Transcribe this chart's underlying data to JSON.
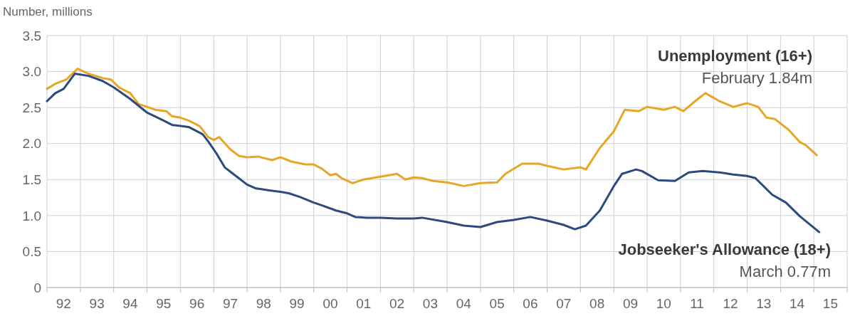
{
  "chart_data": {
    "type": "line",
    "ylabel": "Number, millions",
    "grid": true,
    "line_style": "solid",
    "marker": "none",
    "xlim": [
      "1992-01",
      "2016-01"
    ],
    "ylim": [
      0,
      3.5
    ],
    "yticks": [
      0,
      0.5,
      {
        "value": 1,
        "label": "1.0"
      },
      1.5,
      {
        "value": 2,
        "label": "2.0"
      },
      2.5,
      {
        "value": 3,
        "label": "3.0"
      },
      3.5
    ],
    "xticks": [
      {
        "value": "1992-01",
        "label": null
      },
      {
        "value": "1993-01",
        "label": null
      },
      {
        "value": "1994-01",
        "label": null
      },
      {
        "value": "1995-01",
        "label": null
      },
      {
        "value": "1996-01",
        "label": null
      },
      {
        "value": "1997-01",
        "label": null
      },
      {
        "value": "1998-01",
        "label": null
      },
      {
        "value": "1999-01",
        "label": null
      },
      {
        "value": "2000-01",
        "label": null
      },
      {
        "value": "2001-01",
        "label": null
      },
      {
        "value": "2002-01",
        "label": null
      },
      {
        "value": "2003-01",
        "label": null
      },
      {
        "value": "2004-01",
        "label": null
      },
      {
        "value": "2005-01",
        "label": null
      },
      {
        "value": "2006-01",
        "label": null
      },
      {
        "value": "2007-01",
        "label": null
      },
      {
        "value": "2008-01",
        "label": null
      },
      {
        "value": "2009-01",
        "label": null
      },
      {
        "value": "2010-01",
        "label": null
      },
      {
        "value": "2011-01",
        "label": null
      },
      {
        "value": "2012-01",
        "label": null
      },
      {
        "value": "2013-01",
        "label": null
      },
      {
        "value": "2014-01",
        "label": null
      },
      {
        "value": "2015-01",
        "label": null
      },
      {
        "value": "2016-01",
        "label": null
      },
      {
        "value": "1992-07",
        "label": "92"
      },
      {
        "value": "1993-07",
        "label": "93"
      },
      {
        "value": "1994-07",
        "label": "94"
      },
      {
        "value": "1995-07",
        "label": "95"
      },
      {
        "value": "1996-07",
        "label": "96"
      },
      {
        "value": "1997-07",
        "label": "97"
      },
      {
        "value": "1998-07",
        "label": "98"
      },
      {
        "value": "1999-07",
        "label": "99"
      },
      {
        "value": "2000-07",
        "label": "00"
      },
      {
        "value": "2001-07",
        "label": "01"
      },
      {
        "value": "2002-07",
        "label": "02"
      },
      {
        "value": "2003-07",
        "label": "03"
      },
      {
        "value": "2004-07",
        "label": "04"
      },
      {
        "value": "2005-07",
        "label": "05"
      },
      {
        "value": "2006-07",
        "label": "06"
      },
      {
        "value": "2007-07",
        "label": "07"
      },
      {
        "value": "2008-07",
        "label": "08"
      },
      {
        "value": "2009-07",
        "label": "09"
      },
      {
        "value": "2010-07",
        "label": "10"
      },
      {
        "value": "2011-07",
        "label": "11"
      },
      {
        "value": "2012-07",
        "label": "12"
      },
      {
        "value": "2013-07",
        "label": "13"
      },
      {
        "value": "2014-07",
        "label": "14"
      },
      {
        "value": "2015-07",
        "label": "15"
      }
    ],
    "series": [
      {
        "name": "Unemployment (16+)",
        "color": "#e8a628",
        "x": [
          "1992-01",
          "1992-04",
          "1992-08",
          "1992-12",
          "1993-04",
          "1993-09",
          "1993-12",
          "1994-03",
          "1994-07",
          "1994-10",
          "1995-01",
          "1995-04",
          "1995-08",
          "1995-10",
          "1996-01",
          "1996-04",
          "1996-08",
          "1996-11",
          "1997-01",
          "1997-03",
          "1997-07",
          "1997-10",
          "1998-01",
          "1998-05",
          "1998-10",
          "1999-01",
          "1999-05",
          "1999-10",
          "2000-01",
          "2000-04",
          "2000-07",
          "2000-09",
          "2000-11",
          "2001-03",
          "2001-07",
          "2002-01",
          "2002-07",
          "2002-10",
          "2003-01",
          "2003-04",
          "2003-08",
          "2004-01",
          "2004-07",
          "2005-01",
          "2005-07",
          "2005-10",
          "2006-04",
          "2006-10",
          "2007-01",
          "2007-07",
          "2008-01",
          "2008-03",
          "2008-08",
          "2009-01",
          "2009-05",
          "2009-10",
          "2010-01",
          "2010-07",
          "2010-11",
          "2011-02",
          "2011-07",
          "2011-10",
          "2012-03",
          "2012-08",
          "2013-01",
          "2013-05",
          "2013-08",
          "2013-11",
          "2014-04",
          "2014-08",
          "2014-10",
          "2015-02"
        ],
        "values": [
          2.76,
          2.83,
          2.89,
          3.04,
          2.97,
          2.91,
          2.89,
          2.78,
          2.7,
          2.55,
          2.51,
          2.47,
          2.45,
          2.38,
          2.36,
          2.32,
          2.24,
          2.09,
          2.05,
          2.09,
          1.92,
          1.83,
          1.81,
          1.82,
          1.77,
          1.81,
          1.75,
          1.71,
          1.71,
          1.65,
          1.56,
          1.58,
          1.52,
          1.45,
          1.5,
          1.54,
          1.58,
          1.5,
          1.53,
          1.52,
          1.48,
          1.46,
          1.41,
          1.45,
          1.46,
          1.58,
          1.72,
          1.72,
          1.69,
          1.64,
          1.67,
          1.64,
          1.94,
          2.17,
          2.47,
          2.45,
          2.51,
          2.47,
          2.51,
          2.45,
          2.61,
          2.7,
          2.59,
          2.51,
          2.56,
          2.51,
          2.36,
          2.34,
          2.19,
          2.02,
          1.98,
          1.84
        ]
      },
      {
        "name": "Jobseeker's Allowance (18+)",
        "color": "#2c4a7e",
        "x": [
          "1992-01",
          "1992-04",
          "1992-07",
          "1992-11",
          "1993-04",
          "1993-09",
          "1994-01",
          "1994-07",
          "1995-01",
          "1995-07",
          "1995-10",
          "1996-04",
          "1996-09",
          "1996-11",
          "1997-02",
          "1997-05",
          "1997-08",
          "1998-01",
          "1998-04",
          "1998-09",
          "1999-01",
          "1999-04",
          "1999-08",
          "2000-01",
          "2000-04",
          "2000-09",
          "2001-01",
          "2001-04",
          "2001-08",
          "2002-01",
          "2002-07",
          "2003-01",
          "2003-04",
          "2004-01",
          "2004-07",
          "2005-01",
          "2005-07",
          "2006-01",
          "2006-07",
          "2007-01",
          "2007-07",
          "2007-11",
          "2008-03",
          "2008-08",
          "2009-01",
          "2009-04",
          "2009-09",
          "2009-11",
          "2010-05",
          "2010-11",
          "2011-04",
          "2011-09",
          "2012-03",
          "2012-08",
          "2013-01",
          "2013-04",
          "2013-10",
          "2014-03",
          "2014-08",
          "2015-03"
        ],
        "values": [
          2.59,
          2.7,
          2.76,
          2.97,
          2.94,
          2.87,
          2.78,
          2.62,
          2.43,
          2.32,
          2.26,
          2.23,
          2.13,
          2.03,
          1.86,
          1.67,
          1.58,
          1.43,
          1.38,
          1.35,
          1.33,
          1.31,
          1.26,
          1.18,
          1.14,
          1.07,
          1.03,
          0.98,
          0.97,
          0.97,
          0.96,
          0.96,
          0.97,
          0.91,
          0.86,
          0.84,
          0.91,
          0.94,
          0.98,
          0.93,
          0.87,
          0.81,
          0.86,
          1.07,
          1.41,
          1.58,
          1.64,
          1.62,
          1.49,
          1.48,
          1.6,
          1.62,
          1.6,
          1.57,
          1.55,
          1.52,
          1.29,
          1.18,
          0.99,
          0.77
        ]
      }
    ],
    "annotations": [
      "February 1.84m",
      "March 0.77m"
    ]
  }
}
